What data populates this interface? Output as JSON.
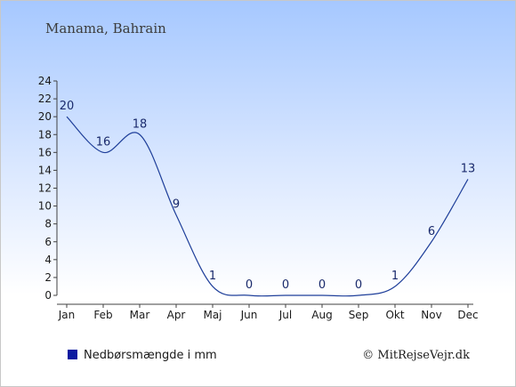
{
  "chart_data": {
    "type": "line",
    "title": "Manama, Bahrain",
    "categories": [
      "Jan",
      "Feb",
      "Mar",
      "Apr",
      "Maj",
      "Jun",
      "Jul",
      "Aug",
      "Sep",
      "Okt",
      "Nov",
      "Dec"
    ],
    "series": [
      {
        "name": "Nedbørsmængde i mm",
        "values": [
          20,
          16,
          18,
          9,
          1,
          0,
          0,
          0,
          0,
          1,
          6,
          13
        ],
        "labels": [
          "20",
          "16",
          "18",
          "9",
          "1",
          "0",
          "0",
          "0",
          "0",
          "1",
          "6",
          "13"
        ],
        "color": "#1f3f9a"
      }
    ],
    "ylim": [
      0,
      24
    ],
    "yticks": [
      "0",
      "2",
      "4",
      "6",
      "8",
      "10",
      "12",
      "14",
      "16",
      "18",
      "20",
      "22",
      "24"
    ],
    "grid": false,
    "legend": "bottom-left"
  },
  "legend": {
    "label": "Nedbørsmængde i mm",
    "swatch_color": "#0a1aa0"
  },
  "credit": "© MitRejseVejr.dk",
  "colors": {
    "axis": "#404040",
    "line": "#1f3f9a"
  }
}
